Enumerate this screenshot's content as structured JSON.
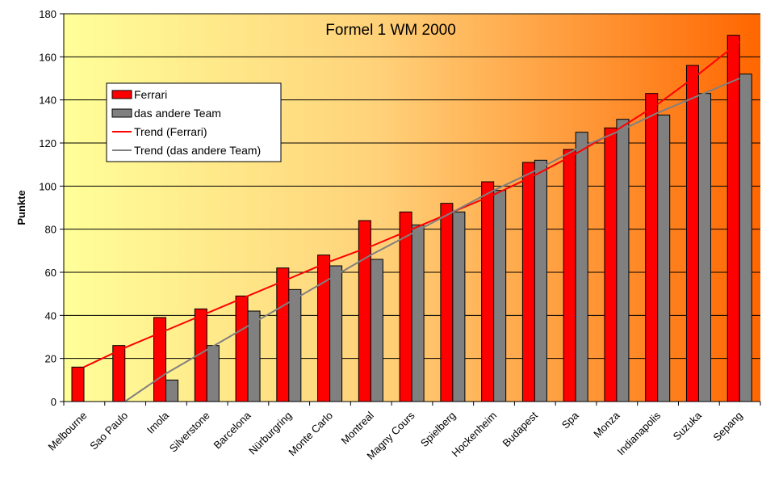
{
  "chart_data": {
    "type": "bar",
    "title": "Formel 1 WM 2000",
    "xlabel": "",
    "ylabel": "Punkte",
    "ylim": [
      0,
      180
    ],
    "yticks": [
      0,
      20,
      40,
      60,
      80,
      100,
      120,
      140,
      160,
      180
    ],
    "grid": true,
    "legend_position": "top-left",
    "categories": [
      "Melbourne",
      "Sao Paulo",
      "Imola",
      "Silverstone",
      "Barcelona",
      "Nürburgring",
      "Monte Carlo",
      "Montreal",
      "Magny Cours",
      "Spielberg",
      "Hockenheim",
      "Budapest",
      "Spa",
      "Monza",
      "Indianapolis",
      "Suzuka",
      "Sepang"
    ],
    "series": [
      {
        "name": "Ferrari",
        "type": "bar",
        "color": "#ff0000",
        "values": [
          16,
          26,
          39,
          43,
          49,
          62,
          68,
          84,
          88,
          92,
          102,
          111,
          117,
          127,
          143,
          156,
          170
        ]
      },
      {
        "name": "das andere Team",
        "type": "bar",
        "color": "#808080",
        "values": [
          0,
          0,
          10,
          26,
          42,
          52,
          63,
          66,
          82,
          88,
          98,
          112,
          125,
          131,
          133,
          143,
          152
        ]
      },
      {
        "name": "Trend (Ferrari)",
        "type": "line",
        "color": "#ff0000",
        "values": [
          16,
          25,
          33,
          41,
          49,
          57,
          65,
          72,
          80,
          88,
          96,
          105,
          115,
          126,
          138,
          152,
          167
        ]
      },
      {
        "name": "Trend (das andere Team)",
        "type": "line",
        "color": "#808080",
        "start_index": 1,
        "values": [
          null,
          0,
          13,
          24,
          35,
          46,
          57,
          68,
          78,
          88,
          98,
          107,
          117,
          125,
          134,
          142,
          150
        ]
      }
    ]
  }
}
